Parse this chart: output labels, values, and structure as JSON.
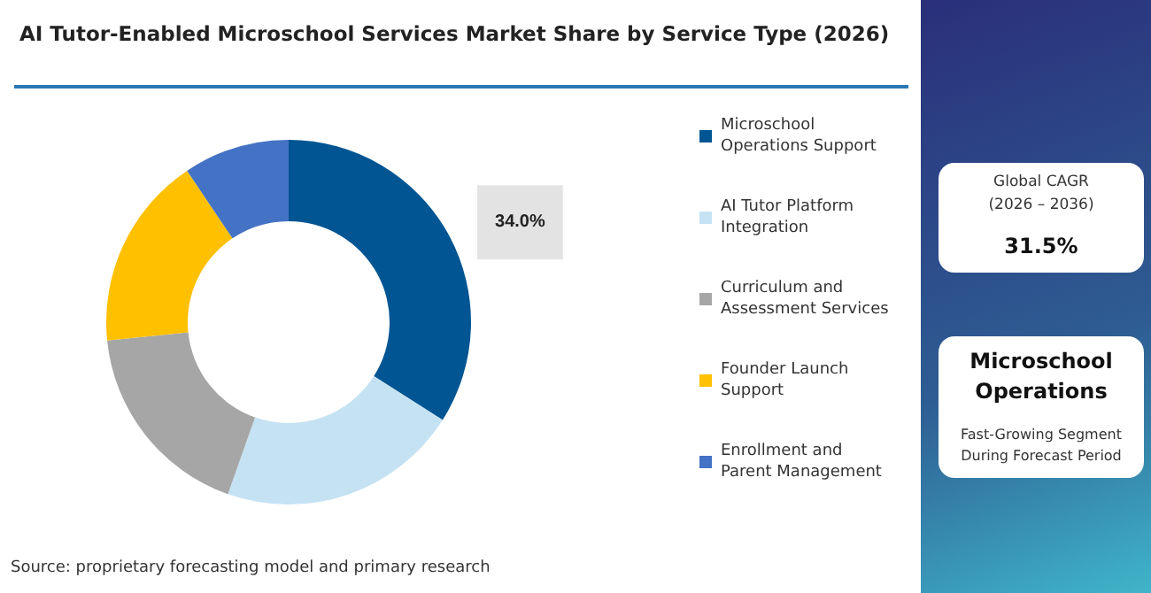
{
  "chart_data": {
    "type": "donut",
    "title": "AI Tutor-Enabled Microschool Services Market Share by Service Type (2026)",
    "categories": [
      "Microschool Operations Support",
      "AI Tutor Platform Integration",
      "Curriculum and Assessment Services",
      "Founder Launch Support",
      "Enrollment and Parent Management"
    ],
    "values": [
      34.0,
      21.4,
      18.0,
      17.2,
      9.4
    ],
    "colors": [
      "#005592",
      "#c5e2f3",
      "#a6a6a6",
      "#ffc000",
      "#4472c4"
    ],
    "value_labels": [
      "34.0%",
      null,
      null,
      null,
      null
    ],
    "legend": "right",
    "annotations": [
      "Source: proprietary forecasting model and primary research",
      "Global CAGR\n(2026 – 2036)",
      "31.5%",
      "Microschool Operations",
      "Fast-Growing Segment During Forecast Period"
    ]
  }
}
